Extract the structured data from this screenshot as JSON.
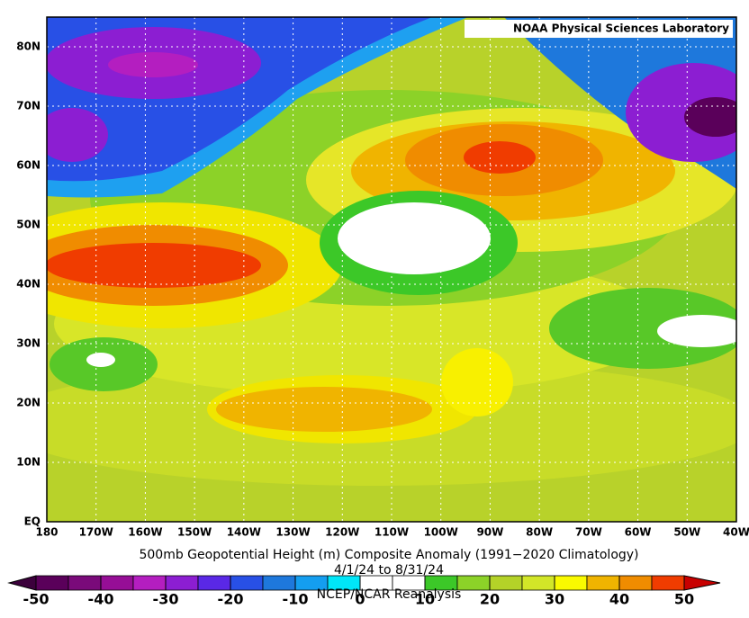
{
  "map": {
    "source": "NOAA Physical Sciences Laboratory",
    "title": "500mb Geopotential Height (m) Composite Anomaly (1991−2020 Climatology)",
    "subtitle": "4/1/24  to 8/31/24",
    "credit": "NCEP/NCAR Reanalysis",
    "lon_range": [
      -180,
      -40
    ],
    "lat_range": [
      0,
      85
    ],
    "lat_ticks": [
      {
        "value": 0,
        "label": "EQ"
      },
      {
        "value": 10,
        "label": "10N"
      },
      {
        "value": 20,
        "label": "20N"
      },
      {
        "value": 30,
        "label": "30N"
      },
      {
        "value": 40,
        "label": "40N"
      },
      {
        "value": 50,
        "label": "50N"
      },
      {
        "value": 60,
        "label": "60N"
      },
      {
        "value": 70,
        "label": "70N"
      },
      {
        "value": 80,
        "label": "80N"
      }
    ],
    "lon_ticks": [
      {
        "value": -180,
        "label": "180"
      },
      {
        "value": -170,
        "label": "170W"
      },
      {
        "value": -160,
        "label": "160W"
      },
      {
        "value": -150,
        "label": "150W"
      },
      {
        "value": -140,
        "label": "140W"
      },
      {
        "value": -130,
        "label": "130W"
      },
      {
        "value": -120,
        "label": "120W"
      },
      {
        "value": -110,
        "label": "110W"
      },
      {
        "value": -100,
        "label": "100W"
      },
      {
        "value": -90,
        "label": "90W"
      },
      {
        "value": -80,
        "label": "80W"
      },
      {
        "value": -70,
        "label": "70W"
      },
      {
        "value": -60,
        "label": "60W"
      },
      {
        "value": -50,
        "label": "50W"
      },
      {
        "value": -40,
        "label": "40W"
      }
    ],
    "colorbar": {
      "range": [
        -50,
        50
      ],
      "ticks": [
        -50,
        -40,
        -30,
        -20,
        -10,
        0,
        10,
        20,
        30,
        40,
        50
      ],
      "under": "#3c003c",
      "over": "#c80000",
      "colors": [
        "#5a005a",
        "#7a0a7a",
        "#960e96",
        "#b41ec0",
        "#8c1ed2",
        "#5a28e6",
        "#2850e6",
        "#1e78dc",
        "#149ef0",
        "#00e6f8",
        "#ffffff",
        "#ffffff",
        "#3cc828",
        "#8cd228",
        "#b4d228",
        "#d2e628",
        "#fafa00",
        "#f0b400",
        "#f08c00",
        "#f03c00"
      ]
    }
  }
}
